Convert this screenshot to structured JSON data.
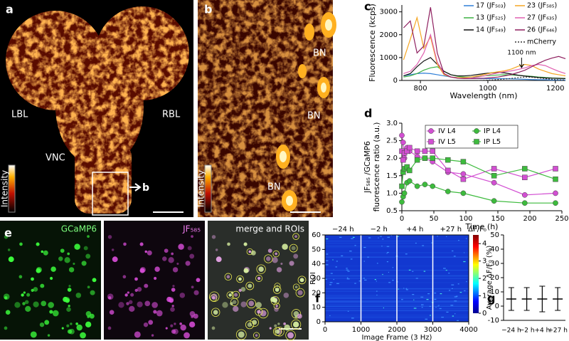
{
  "panels": {
    "a": {
      "label": "a",
      "regions": [
        "LBL",
        "RBL",
        "VNC"
      ],
      "pointer": "b",
      "colorbar": "Intensity"
    },
    "b": {
      "label": "b",
      "regions": [
        "BN",
        "BN",
        "BN"
      ],
      "colorbar": "Intensity"
    },
    "e": {
      "label": "e",
      "channels": [
        "GCaMP6",
        "JF₅₈₅",
        "merge and ROIs"
      ]
    }
  },
  "chart_data": [
    {
      "type": "line",
      "label": "c",
      "xlabel": "Wavelength (nm)",
      "ylabel": "Fluorescence (kcps)",
      "x": [
        750,
        770,
        790,
        810,
        830,
        850,
        870,
        890,
        910,
        930,
        950,
        970,
        990,
        1010,
        1030,
        1050,
        1070,
        1090,
        1110,
        1130,
        1150,
        1170,
        1190,
        1210,
        1230
      ],
      "series": [
        {
          "name": "17 (JF₅₀₃)",
          "color": "#2f7fd8",
          "values": [
            200,
            250,
            300,
            320,
            300,
            250,
            200,
            150,
            120,
            100,
            90,
            80,
            80,
            80,
            80,
            80,
            70,
            60,
            50,
            40,
            30,
            30,
            20,
            20,
            20
          ]
        },
        {
          "name": "13 (JF₅₂₅)",
          "color": "#3cb043",
          "values": [
            150,
            200,
            300,
            450,
            550,
            600,
            400,
            250,
            180,
            150,
            150,
            170,
            200,
            220,
            240,
            250,
            240,
            220,
            200,
            180,
            150,
            130,
            110,
            100,
            90
          ]
        },
        {
          "name": "14 (JF₅₄₉)",
          "color": "#111111",
          "values": [
            200,
            300,
            600,
            850,
            1000,
            700,
            400,
            250,
            200,
            200,
            220,
            260,
            300,
            330,
            350,
            330,
            280,
            230,
            190,
            160,
            130,
            110,
            100,
            90,
            80
          ]
        },
        {
          "name": "23 (JF₅₈₅)",
          "color": "#f5a623",
          "values": [
            900,
            1800,
            2750,
            1400,
            1900,
            700,
            250,
            150,
            120,
            120,
            150,
            200,
            260,
            330,
            380,
            420,
            500,
            620,
            700,
            650,
            500,
            400,
            300,
            250,
            200
          ]
        },
        {
          "name": "27 (JF₆₃₅)",
          "color": "#e060b0",
          "values": [
            300,
            400,
            700,
            1200,
            2000,
            800,
            300,
            150,
            100,
            90,
            100,
            150,
            200,
            270,
            330,
            380,
            420,
            480,
            550,
            650,
            700,
            650,
            520,
            400,
            300
          ]
        },
        {
          "name": "26 (JF₆₄₆)",
          "color": "#8e1f5f",
          "values": [
            2300,
            2600,
            1200,
            1500,
            3200,
            1200,
            300,
            150,
            100,
            80,
            80,
            90,
            100,
            120,
            150,
            200,
            260,
            350,
            450,
            600,
            750,
            880,
            980,
            1050,
            950
          ]
        },
        {
          "name": "mCherry",
          "color": "#333333",
          "line_style": "dashed",
          "values": [
            0,
            0,
            0,
            0,
            0,
            0,
            0,
            0,
            0,
            0,
            0,
            0,
            10,
            20,
            40,
            60,
            90,
            120,
            150,
            140,
            110,
            80,
            50,
            30,
            20
          ]
        }
      ],
      "annotation": {
        "text": "1100 nm",
        "x": 1100
      },
      "xlim": [
        745,
        1230
      ],
      "xticks": [
        800,
        1000,
        1200
      ],
      "ylim": [
        0,
        3300
      ],
      "yticks": [
        0,
        1000,
        2000,
        3000
      ]
    },
    {
      "type": "marker-line",
      "label": "d",
      "xlabel": "Time (h)",
      "ylabel": [
        "JF₅₈₅ /GCaMP6",
        "fluorescence ratio (a.u.)"
      ],
      "x": [
        0,
        2,
        4,
        8,
        12,
        24,
        36,
        48,
        72,
        96,
        144,
        192,
        240
      ],
      "series": [
        {
          "name": "IV L4",
          "color": "#d24fd2",
          "marker": "circle",
          "values": [
            2.65,
            2.45,
            2.0,
            2.3,
            2.2,
            2.05,
            2.0,
            1.9,
            1.6,
            1.55,
            1.3,
            0.95,
            1.0
          ]
        },
        {
          "name": "IV L5",
          "color": "#d24fd2",
          "marker": "square",
          "values": [
            2.2,
            1.95,
            2.15,
            2.2,
            2.3,
            2.2,
            2.2,
            2.2,
            1.65,
            1.4,
            1.7,
            1.45,
            1.7
          ]
        },
        {
          "name": "IP L4",
          "color": "#3dbb3d",
          "marker": "circle",
          "values": [
            0.75,
            0.9,
            1.0,
            1.3,
            1.35,
            1.2,
            1.25,
            1.2,
            1.05,
            1.0,
            0.78,
            0.72,
            0.72
          ]
        },
        {
          "name": "IP L5",
          "color": "#3dbb3d",
          "marker": "square",
          "values": [
            1.2,
            1.6,
            1.7,
            1.75,
            1.65,
            1.95,
            2.0,
            2.0,
            1.95,
            1.9,
            1.5,
            1.7,
            1.4
          ]
        }
      ],
      "xlim": [
        0,
        250
      ],
      "xticks": [
        0,
        50,
        100,
        150,
        200,
        250
      ],
      "ylim": [
        0.5,
        3.0
      ],
      "yticks": [
        0.5,
        {
          "value": 1,
          "label": "1.0"
        },
        1.5,
        {
          "value": 2,
          "label": "2.0"
        },
        2.5,
        {
          "value": 3,
          "label": "3.0"
        }
      ]
    },
    {
      "type": "heatmap",
      "label": "f",
      "xlabel": "Image Frame (3 Hz)",
      "ylabel": "ROI",
      "conditions": [
        "−24 h",
        "−2 h",
        "+4 h",
        "+27 h"
      ],
      "xlim": [
        0,
        4000
      ],
      "xticks": [
        0,
        1000,
        2000,
        3000,
        4000
      ],
      "ylim": [
        0,
        60
      ],
      "yticks": [
        0,
        10,
        20,
        30,
        40,
        50,
        60
      ],
      "colorbar": {
        "title": "ΔF/F₀",
        "clim": [
          0,
          4.5
        ],
        "ticks": [
          0,
          1,
          2,
          3,
          4
        ]
      }
    },
    {
      "type": "dot",
      "label": "g",
      "ylabel": "Average ΔF/F₀ (%)",
      "categories": [
        "−24 h",
        "−2 h",
        "+4 h",
        "+27 h"
      ],
      "values": [
        5,
        5,
        5,
        5
      ],
      "errors": [
        8,
        8,
        9,
        8
      ],
      "ylim": [
        -10,
        50
      ],
      "yticks": [
        -10,
        0,
        10,
        20,
        30,
        40,
        50
      ]
    }
  ]
}
